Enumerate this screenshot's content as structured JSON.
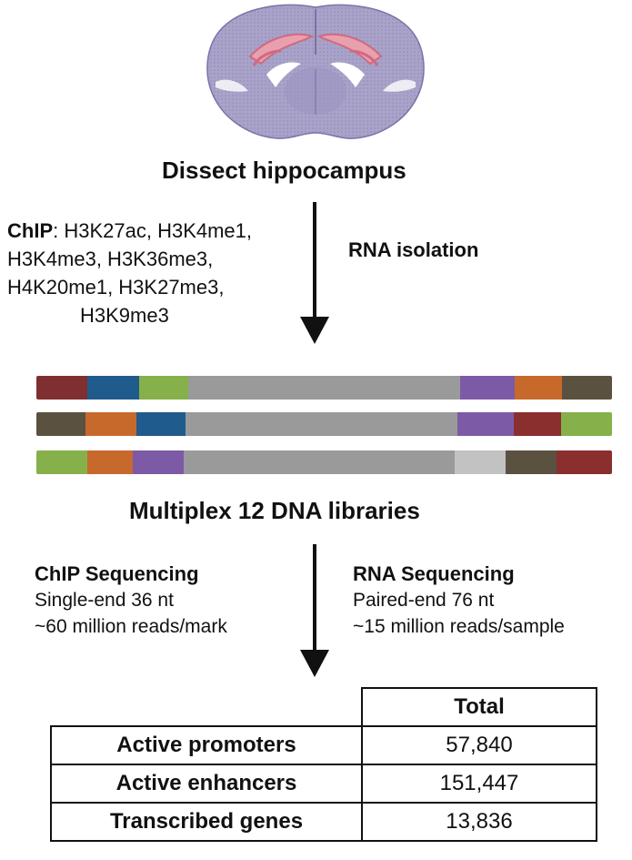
{
  "steps": {
    "dissect": "Dissect hippocampus",
    "multiplex": "Multiplex 12 DNA libraries"
  },
  "chip": {
    "prefix": "ChIP",
    "line1_rest": ": H3K27ac, H3K4me1,",
    "line2": "H3K4me3, H3K36me3,",
    "line3": "H4K20me1,  H3K27me3,",
    "line4": "H3K9me3"
  },
  "rna_isolation": "RNA isolation",
  "chip_seq": {
    "title": "ChIP Sequencing",
    "line1": "Single-end 36 nt",
    "line2": "~60  million reads/mark"
  },
  "rna_seq": {
    "title": "RNA Sequencing",
    "line1": "Paired-end 76 nt",
    "line2": "~15  million reads/sample"
  },
  "library_bars": [
    [
      "#7f2f2f",
      "#1f5b8c",
      "#86b04a",
      "#9a9a9a",
      "#7d5aa6",
      "#c8692c",
      "#5b5140"
    ],
    [
      "#5b5140",
      "#c8692c",
      "#1f5b8c",
      "#9a9a9a",
      "#7d5aa6",
      "#8a2e2e",
      "#86b04a"
    ],
    [
      "#86b04a",
      "#c8692c",
      "#7d5aa6",
      "#9a9a9a",
      "#c2c2c2",
      "#5b5140",
      "#8a2e2e"
    ]
  ],
  "table": {
    "header": "Total",
    "rows": [
      {
        "label": "Active promoters",
        "value": "57,840"
      },
      {
        "label": "Active enhancers",
        "value": "151,447"
      },
      {
        "label": "Transcribed genes",
        "value": "13,836"
      }
    ]
  }
}
